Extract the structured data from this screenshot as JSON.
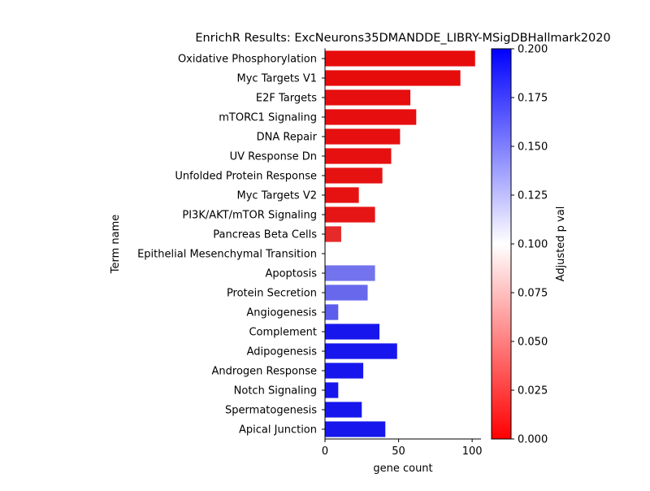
{
  "chart_data": {
    "type": "bar",
    "orientation": "horizontal",
    "title": "EnrichR Results: ExcNeurons35DMANDDE_LIBRY-MSigDBHallmark2020",
    "xlabel": "gene count",
    "ylabel": "Term name",
    "xlim": [
      0,
      106
    ],
    "x_ticks": [
      0,
      50,
      100
    ],
    "grid": false,
    "categories": [
      "Oxidative Phosphorylation",
      "Myc Targets V1",
      "E2F Targets",
      "mTORC1 Signaling",
      "DNA Repair",
      "UV Response Dn",
      "Unfolded Protein Response",
      "Myc Targets V2",
      "PI3K/AKT/mTOR  Signaling",
      "Pancreas Beta Cells",
      "Epithelial Mesenchymal Transition",
      "Apoptosis",
      "Protein Secretion",
      "Angiogenesis",
      "Complement",
      "Adipogenesis",
      "Androgen Response",
      "Notch Signaling",
      "Spermatogenesis",
      "Apical Junction"
    ],
    "values": [
      102,
      92,
      58,
      62,
      51,
      45,
      39,
      23,
      34,
      11,
      0,
      34,
      29,
      9,
      37,
      49,
      26,
      9,
      25,
      41
    ],
    "adjusted_p_values": [
      0.005,
      0.005,
      0.006,
      0.006,
      0.007,
      0.007,
      0.008,
      0.008,
      0.009,
      0.018,
      0.1,
      0.15,
      0.155,
      0.16,
      0.19,
      0.19,
      0.19,
      0.19,
      0.19,
      0.19
    ],
    "colorbar": {
      "label": "Adjusted p val",
      "range": [
        0.0,
        0.2
      ],
      "ticks": [
        "0.000",
        "0.025",
        "0.050",
        "0.075",
        "0.100",
        "0.125",
        "0.150",
        "0.175",
        "0.200"
      ],
      "colormap": [
        "#ff0000",
        "#ffffff",
        "#0000ff"
      ]
    }
  }
}
